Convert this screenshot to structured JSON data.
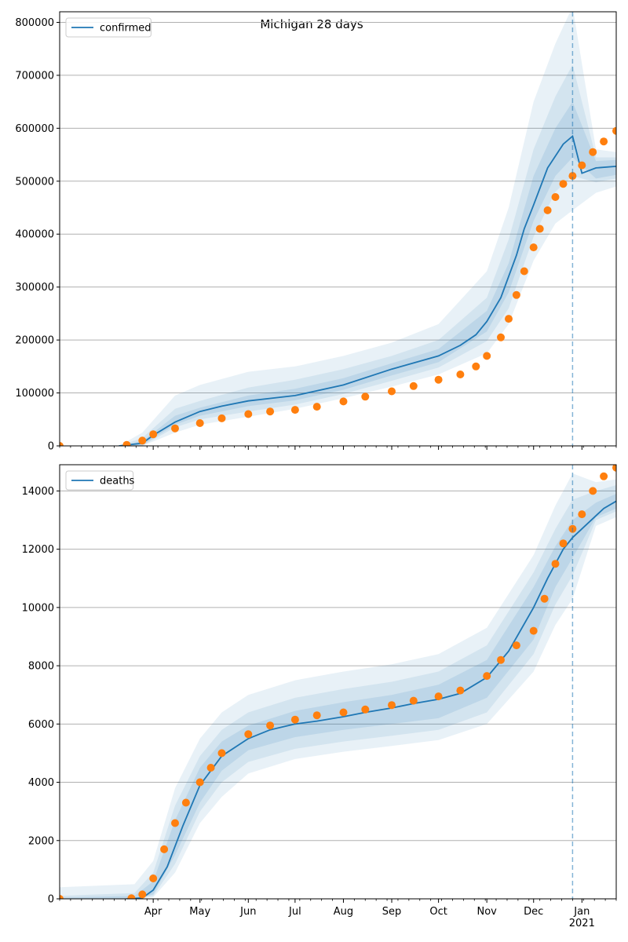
{
  "title": "Michigan 28 days",
  "colors": {
    "model": "#1f77b4",
    "observed": "#ff7f0e",
    "band": "#1f77b4",
    "grid": "#b0b0b0"
  },
  "chart_data": [
    {
      "type": "line",
      "legend": "confirmed",
      "legend_position": "top-left",
      "grid": "horizontal",
      "ylim": [
        0,
        820000
      ],
      "yticks": [
        0,
        100000,
        200000,
        300000,
        400000,
        500000,
        600000,
        700000,
        800000
      ],
      "ytick_labels": [
        "0",
        "100000",
        "200000",
        "300000",
        "400000",
        "500000",
        "600000",
        "700000",
        "800000"
      ],
      "xlim": [
        "2020-02-01",
        "2021-01-23"
      ],
      "xticks": [
        "2020-04-01",
        "2020-05-01",
        "2020-06-01",
        "2020-07-01",
        "2020-08-01",
        "2020-09-01",
        "2020-10-01",
        "2020-11-01",
        "2020-12-01",
        "2021-01-01"
      ],
      "xtick_labels": [
        "Apr",
        "May",
        "Jun",
        "Jul",
        "Aug",
        "Sep",
        "Oct",
        "Nov",
        "Dec",
        "Jan\n2021"
      ],
      "forecast_start": "2020-12-26",
      "model_series": {
        "x": [
          "2020-03-10",
          "2020-03-25",
          "2020-04-01",
          "2020-04-15",
          "2020-05-01",
          "2020-05-15",
          "2020-06-01",
          "2020-07-01",
          "2020-08-01",
          "2020-09-01",
          "2020-10-01",
          "2020-10-15",
          "2020-10-25",
          "2020-11-01",
          "2020-11-10",
          "2020-11-20",
          "2020-11-25",
          "2020-12-01",
          "2020-12-10",
          "2020-12-20",
          "2020-12-26",
          "2021-01-01",
          "2021-01-10",
          "2021-01-23"
        ],
        "y": [
          0,
          5000,
          20000,
          45000,
          65000,
          75000,
          85000,
          95000,
          115000,
          145000,
          170000,
          190000,
          210000,
          235000,
          280000,
          360000,
          410000,
          455000,
          525000,
          570000,
          585000,
          515000,
          525000,
          528000
        ]
      },
      "bands": [
        {
          "label": "outer",
          "x": [
            "2020-03-10",
            "2020-03-25",
            "2020-04-15",
            "2020-05-01",
            "2020-06-01",
            "2020-07-01",
            "2020-08-01",
            "2020-09-01",
            "2020-10-01",
            "2020-11-01",
            "2020-11-15",
            "2020-12-01",
            "2020-12-15",
            "2020-12-26",
            "2021-01-10",
            "2021-01-23"
          ],
          "lo": [
            0,
            0,
            25000,
            40000,
            55000,
            70000,
            90000,
            112000,
            135000,
            175000,
            230000,
            350000,
            420000,
            445000,
            478000,
            490000
          ],
          "hi": [
            0,
            25000,
            95000,
            115000,
            140000,
            150000,
            170000,
            195000,
            230000,
            330000,
            450000,
            650000,
            760000,
            830000,
            560000,
            555000
          ]
        },
        {
          "label": "mid",
          "x": [
            "2020-03-10",
            "2020-03-25",
            "2020-04-15",
            "2020-05-01",
            "2020-06-01",
            "2020-07-01",
            "2020-08-01",
            "2020-09-01",
            "2020-10-01",
            "2020-11-01",
            "2020-11-15",
            "2020-12-01",
            "2020-12-15",
            "2020-12-26",
            "2021-01-10",
            "2021-01-23"
          ],
          "lo": [
            0,
            0,
            35000,
            50000,
            65000,
            78000,
            98000,
            123000,
            148000,
            198000,
            260000,
            395000,
            480000,
            510000,
            498000,
            505000
          ],
          "hi": [
            0,
            15000,
            70000,
            85000,
            110000,
            125000,
            145000,
            170000,
            200000,
            280000,
            390000,
            560000,
            660000,
            720000,
            545000,
            545000
          ]
        },
        {
          "label": "inner",
          "x": [
            "2020-03-10",
            "2020-03-25",
            "2020-04-15",
            "2020-05-01",
            "2020-06-01",
            "2020-07-01",
            "2020-08-01",
            "2020-09-01",
            "2020-10-01",
            "2020-11-01",
            "2020-11-15",
            "2020-12-01",
            "2020-12-15",
            "2020-12-26",
            "2021-01-10",
            "2021-01-23"
          ],
          "lo": [
            0,
            2000,
            40000,
            57000,
            75000,
            86000,
            106000,
            133000,
            158000,
            216000,
            290000,
            425000,
            510000,
            545000,
            505000,
            512000
          ],
          "hi": [
            0,
            9000,
            57000,
            72000,
            95000,
            108000,
            128000,
            156000,
            183000,
            255000,
            345000,
            510000,
            600000,
            650000,
            538000,
            540000
          ]
        }
      ],
      "observed_series": {
        "x": [
          "2020-02-01",
          "2020-03-15",
          "2020-03-25",
          "2020-04-01",
          "2020-04-15",
          "2020-05-01",
          "2020-05-15",
          "2020-06-01",
          "2020-06-15",
          "2020-07-01",
          "2020-07-15",
          "2020-08-01",
          "2020-08-15",
          "2020-09-01",
          "2020-09-15",
          "2020-10-01",
          "2020-10-15",
          "2020-10-25",
          "2020-11-01",
          "2020-11-10",
          "2020-11-15",
          "2020-11-20",
          "2020-11-25",
          "2020-12-01",
          "2020-12-05",
          "2020-12-10",
          "2020-12-15",
          "2020-12-20",
          "2020-12-26",
          "2021-01-01",
          "2021-01-08",
          "2021-01-15",
          "2021-01-23"
        ],
        "y": [
          0,
          2000,
          10000,
          22000,
          33000,
          43000,
          52000,
          60000,
          65000,
          68000,
          74000,
          84000,
          93000,
          103000,
          113000,
          125000,
          135000,
          150000,
          170000,
          205000,
          240000,
          285000,
          330000,
          375000,
          410000,
          445000,
          470000,
          495000,
          510000,
          530000,
          555000,
          575000,
          595000
        ]
      }
    },
    {
      "type": "line",
      "legend": "deaths",
      "legend_position": "top-left",
      "grid": "horizontal",
      "ylim": [
        0,
        14900
      ],
      "yticks": [
        0,
        2000,
        4000,
        6000,
        8000,
        10000,
        12000,
        14000
      ],
      "ytick_labels": [
        "0",
        "2000",
        "4000",
        "6000",
        "8000",
        "10000",
        "12000",
        "14000"
      ],
      "xlim": [
        "2020-02-01",
        "2021-01-23"
      ],
      "xticks": [
        "2020-04-01",
        "2020-05-01",
        "2020-06-01",
        "2020-07-01",
        "2020-08-01",
        "2020-09-01",
        "2020-10-01",
        "2020-11-01",
        "2020-12-01",
        "2021-01-01"
      ],
      "xtick_labels": [
        "Apr",
        "May",
        "Jun",
        "Jul",
        "Aug",
        "Sep",
        "Oct",
        "Nov",
        "Dec",
        "Jan\n2021"
      ],
      "forecast_start": "2020-12-26",
      "model_series": {
        "x": [
          "2020-03-15",
          "2020-03-25",
          "2020-04-01",
          "2020-04-10",
          "2020-04-20",
          "2020-05-01",
          "2020-05-15",
          "2020-06-01",
          "2020-06-15",
          "2020-07-01",
          "2020-07-15",
          "2020-08-01",
          "2020-08-15",
          "2020-09-01",
          "2020-09-15",
          "2020-10-01",
          "2020-10-15",
          "2020-11-01",
          "2020-11-15",
          "2020-12-01",
          "2020-12-10",
          "2020-12-20",
          "2020-12-26",
          "2021-01-05",
          "2021-01-15",
          "2021-01-23"
        ],
        "y": [
          0,
          30,
          300,
          1100,
          2500,
          3900,
          4900,
          5500,
          5800,
          6000,
          6100,
          6250,
          6400,
          6550,
          6700,
          6850,
          7050,
          7600,
          8500,
          10000,
          11000,
          12000,
          12400,
          12900,
          13400,
          13650
        ]
      },
      "bands": [
        {
          "label": "outer",
          "x": [
            "2020-02-01",
            "2020-03-20",
            "2020-04-01",
            "2020-04-15",
            "2020-05-01",
            "2020-05-15",
            "2020-06-01",
            "2020-07-01",
            "2020-08-01",
            "2020-09-01",
            "2020-10-01",
            "2020-11-01",
            "2020-12-01",
            "2020-12-15",
            "2020-12-26",
            "2021-01-10",
            "2021-01-23"
          ],
          "lo": [
            0,
            0,
            50,
            900,
            2600,
            3500,
            4300,
            4800,
            5050,
            5250,
            5450,
            6000,
            7800,
            9400,
            10300,
            12800,
            13100
          ],
          "hi": [
            400,
            500,
            1300,
            3800,
            5500,
            6400,
            7000,
            7500,
            7800,
            8050,
            8400,
            9300,
            11800,
            13500,
            14600,
            14300,
            14400
          ]
        },
        {
          "label": "mid",
          "x": [
            "2020-02-01",
            "2020-03-20",
            "2020-04-01",
            "2020-04-15",
            "2020-05-01",
            "2020-05-15",
            "2020-06-01",
            "2020-07-01",
            "2020-08-01",
            "2020-09-01",
            "2020-10-01",
            "2020-11-01",
            "2020-12-01",
            "2020-12-15",
            "2020-12-26",
            "2021-01-10",
            "2021-01-23"
          ],
          "lo": [
            0,
            0,
            100,
            1200,
            3000,
            4000,
            4700,
            5150,
            5400,
            5600,
            5800,
            6400,
            8400,
            10100,
            11100,
            13000,
            13300
          ],
          "hi": [
            100,
            200,
            900,
            3200,
            4900,
            5800,
            6400,
            6900,
            7200,
            7450,
            7800,
            8700,
            11200,
            12700,
            13700,
            14000,
            14200
          ]
        },
        {
          "label": "inner",
          "x": [
            "2020-02-01",
            "2020-03-20",
            "2020-04-01",
            "2020-04-15",
            "2020-05-01",
            "2020-05-15",
            "2020-06-01",
            "2020-07-01",
            "2020-08-01",
            "2020-09-01",
            "2020-10-01",
            "2020-11-01",
            "2020-12-01",
            "2020-12-15",
            "2020-12-26",
            "2021-01-10",
            "2021-01-23"
          ],
          "lo": [
            0,
            0,
            150,
            1500,
            3300,
            4400,
            5100,
            5550,
            5800,
            6000,
            6200,
            6900,
            8900,
            10700,
            11700,
            13100,
            13400
          ],
          "hi": [
            40,
            100,
            600,
            2700,
            4500,
            5400,
            5950,
            6450,
            6750,
            7000,
            7350,
            8200,
            10700,
            12100,
            13000,
            13600,
            13900
          ]
        }
      ],
      "observed_series": {
        "x": [
          "2020-02-01",
          "2020-03-18",
          "2020-03-25",
          "2020-04-01",
          "2020-04-08",
          "2020-04-15",
          "2020-04-22",
          "2020-05-01",
          "2020-05-08",
          "2020-05-15",
          "2020-06-01",
          "2020-06-15",
          "2020-07-01",
          "2020-07-15",
          "2020-08-01",
          "2020-08-15",
          "2020-09-01",
          "2020-09-15",
          "2020-10-01",
          "2020-10-15",
          "2020-11-01",
          "2020-11-10",
          "2020-11-20",
          "2020-12-01",
          "2020-12-08",
          "2020-12-15",
          "2020-12-20",
          "2020-12-26",
          "2021-01-01",
          "2021-01-08",
          "2021-01-15",
          "2021-01-23"
        ],
        "y": [
          0,
          20,
          150,
          700,
          1700,
          2600,
          3300,
          4000,
          4500,
          5000,
          5650,
          5950,
          6150,
          6300,
          6400,
          6500,
          6650,
          6800,
          6950,
          7150,
          7650,
          8200,
          8700,
          9200,
          10300,
          11500,
          12200,
          12700,
          13200,
          14000,
          14500,
          14800
        ]
      }
    }
  ]
}
